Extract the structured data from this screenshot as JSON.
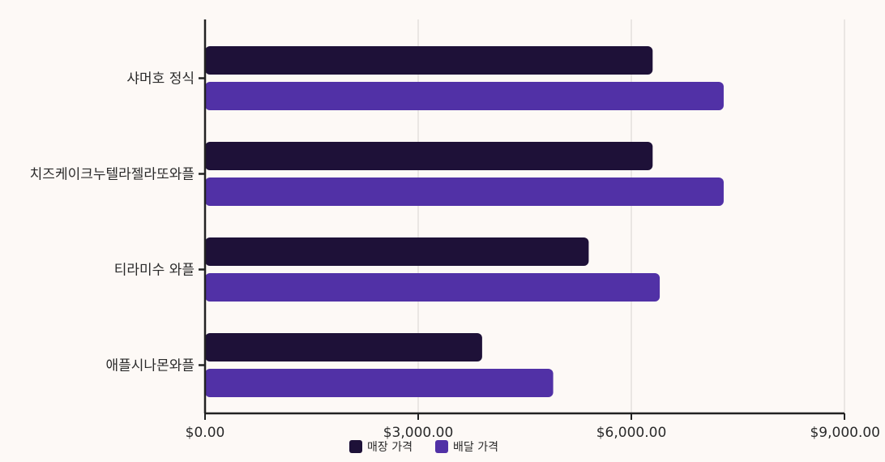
{
  "chart_data": {
    "type": "bar",
    "orientation": "horizontal",
    "categories": [
      "샤머호 정식",
      "치즈케이크누텔라젤라또와플",
      "티라미수 와플",
      "애플시나몬와플"
    ],
    "series": [
      {
        "name": "매장 가격",
        "color": "#1e1138",
        "values": [
          6300,
          6300,
          5400,
          3900
        ]
      },
      {
        "name": "배달 가격",
        "color": "#5131a6",
        "values": [
          7300,
          7300,
          6400,
          4900
        ]
      }
    ],
    "x_ticks": [
      0,
      3000,
      6000,
      9000
    ],
    "x_tick_labels": [
      "$0.00",
      "$3,000.00",
      "$6,000.00",
      "$9,000.00"
    ],
    "xlim": [
      0,
      9000
    ],
    "grid": true,
    "legend_position": "bottom-center"
  }
}
